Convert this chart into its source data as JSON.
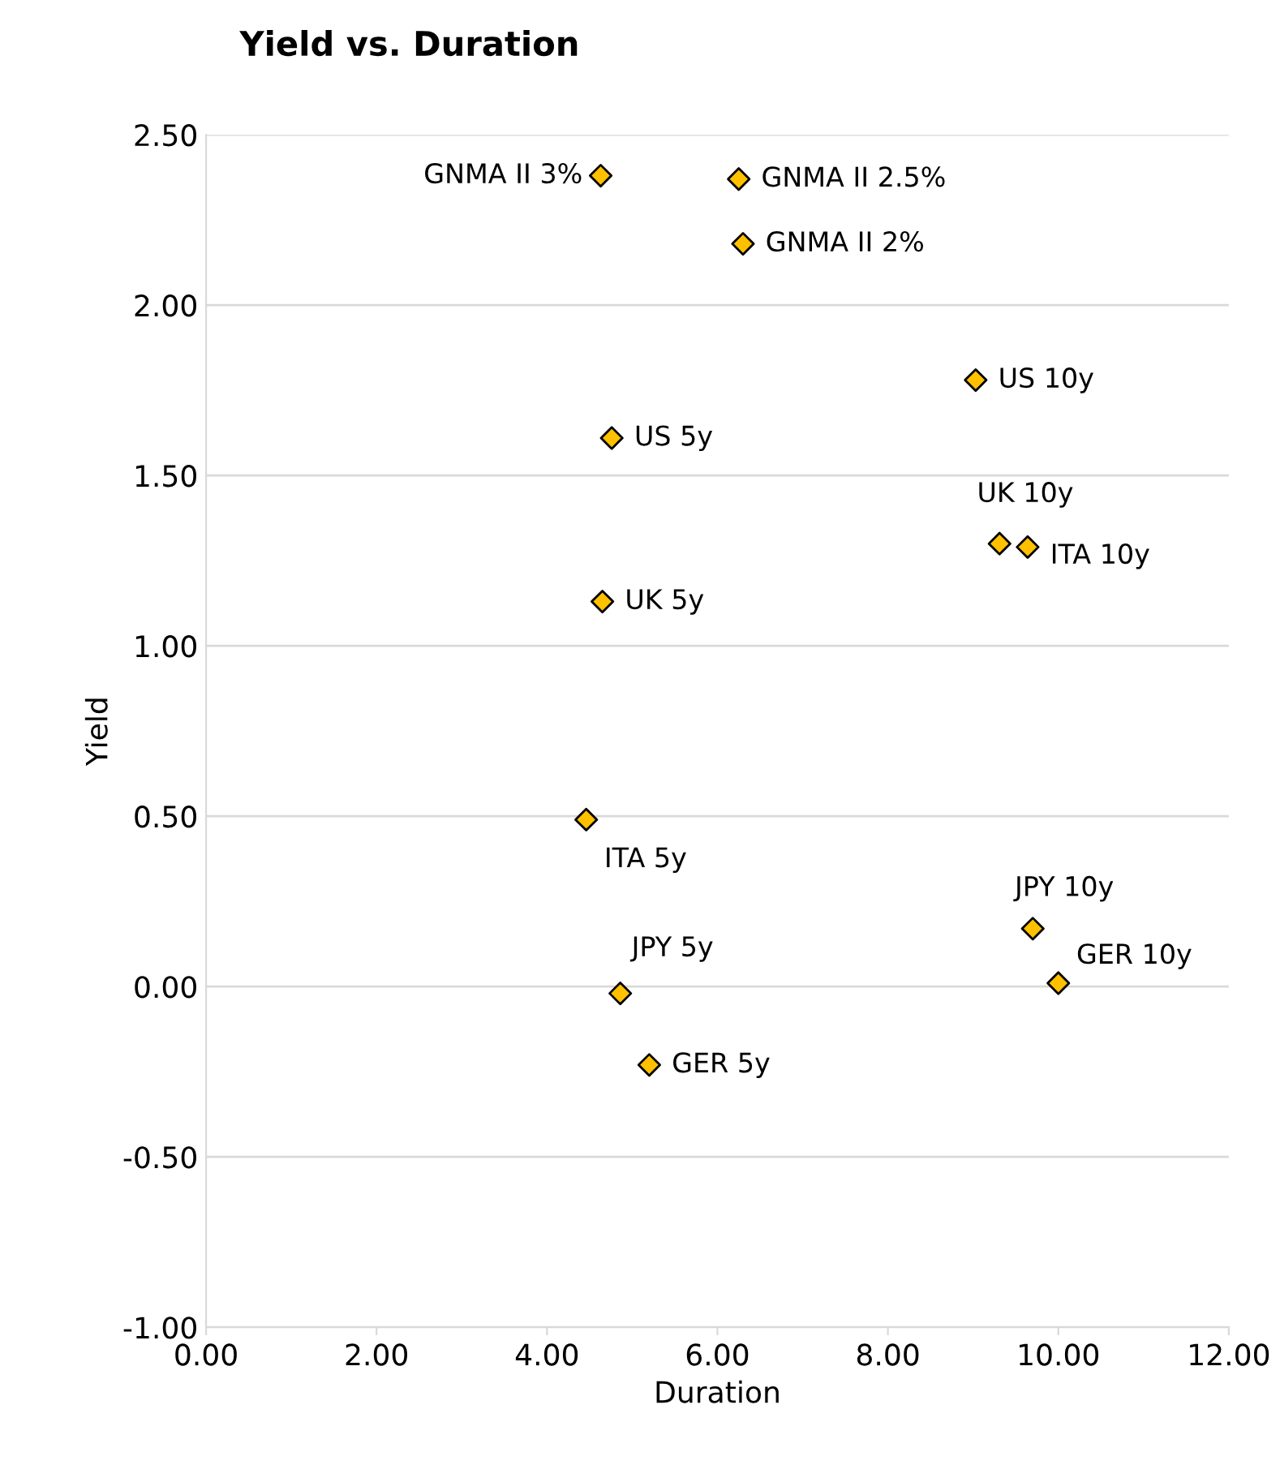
{
  "chart_data": {
    "type": "scatter",
    "title": "Yield vs. Duration",
    "xlabel": "Duration",
    "ylabel": "Yield",
    "x": [
      4.63,
      6.25,
      6.3,
      9.03,
      4.76,
      9.31,
      9.64,
      4.65,
      4.46,
      9.7,
      10.0,
      4.86,
      5.2
    ],
    "series": [
      {
        "color": "#ffc000",
        "values": [
          2.38,
          2.37,
          2.18,
          1.78,
          1.61,
          1.3,
          1.29,
          1.13,
          0.49,
          0.17,
          0.01,
          -0.02,
          -0.23
        ]
      }
    ],
    "marker": "diamond",
    "annotations": [
      {
        "text": "GNMA II 3%",
        "x": 4.63,
        "y": 2.38
      },
      {
        "text": "GNMA II 2.5%",
        "x": 6.25,
        "y": 2.37
      },
      {
        "text": "GNMA II 2%",
        "x": 6.3,
        "y": 2.18
      },
      {
        "text": "US 10y",
        "x": 9.03,
        "y": 1.78
      },
      {
        "text": "US 5y",
        "x": 4.76,
        "y": 1.61
      },
      {
        "text": "UK 10y",
        "x": 9.31,
        "y": 1.3
      },
      {
        "text": "ITA 10y",
        "x": 9.64,
        "y": 1.29
      },
      {
        "text": "UK 5y",
        "x": 4.65,
        "y": 1.13
      },
      {
        "text": "ITA 5y",
        "x": 4.46,
        "y": 0.49
      },
      {
        "text": "JPY 10y",
        "x": 9.7,
        "y": 0.17
      },
      {
        "text": "GER 10y",
        "x": 10.0,
        "y": 0.01
      },
      {
        "text": "JPY 5y",
        "x": 4.86,
        "y": -0.02
      },
      {
        "text": "GER 5y",
        "x": 5.2,
        "y": -0.23
      }
    ],
    "xlim": [
      0,
      12
    ],
    "xticks": [
      {
        "value": 0,
        "label": "0.00"
      },
      {
        "value": 2,
        "label": "2.00"
      },
      {
        "value": 4,
        "label": "4.00"
      },
      {
        "value": 6,
        "label": "6.00"
      },
      {
        "value": 8,
        "label": "8.00"
      },
      {
        "value": 10,
        "label": "10.00"
      },
      {
        "value": 12,
        "label": "12.00"
      }
    ],
    "ylim": [
      -1,
      2.5
    ],
    "yticks": [
      {
        "value": -1,
        "label": "-1.00"
      },
      {
        "value": -0.5,
        "label": "-0.50"
      },
      {
        "value": 0,
        "label": "0.00"
      },
      {
        "value": 0.5,
        "label": "0.50"
      },
      {
        "value": 1,
        "label": "1.00"
      },
      {
        "value": 1.5,
        "label": "1.50"
      },
      {
        "value": 2,
        "label": "2.00"
      },
      {
        "value": 2.5,
        "label": "2.50"
      }
    ],
    "grid": "y"
  }
}
